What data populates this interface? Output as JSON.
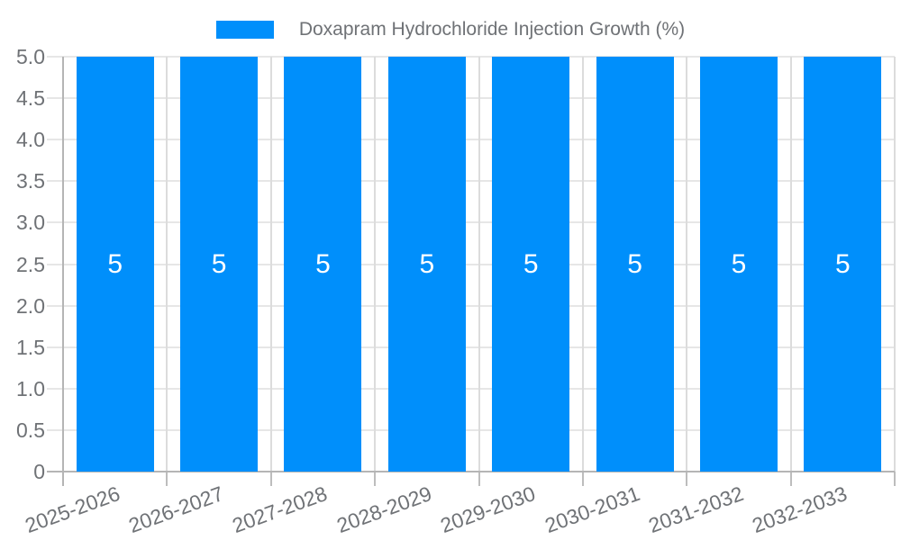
{
  "legend": {
    "label": "Doxapram Hydrochloride Injection Growth (%)",
    "marker_color": "#008FFB"
  },
  "chart_data": {
    "type": "bar",
    "title": "Doxapram Hydrochloride Injection Growth (%)",
    "categories": [
      "2025-2026",
      "2026-2027",
      "2027-2028",
      "2028-2029",
      "2029-2030",
      "2030-2031",
      "2031-2032",
      "2032-2033"
    ],
    "values": [
      5,
      5,
      5,
      5,
      5,
      5,
      5,
      5
    ],
    "data_labels": [
      "5",
      "5",
      "5",
      "5",
      "5",
      "5",
      "5",
      "5"
    ],
    "xlabel": "",
    "ylabel": "",
    "ylim": [
      0,
      5
    ],
    "ytick_step": 0.5,
    "ytick_labels": [
      "0",
      "0.5",
      "1.0",
      "1.5",
      "2.0",
      "2.5",
      "3.0",
      "3.5",
      "4.0",
      "4.5",
      "5.0"
    ],
    "grid": true,
    "legend_position": "top",
    "bar_color": "#008FFB",
    "data_label_color": "#ffffff"
  },
  "colors": {
    "background": "#ffffff",
    "bar": "#008FFB",
    "grid_horizontal": "#e6e6e6",
    "grid_vertical": "#dcdcdc",
    "axis_line": "#b5b5b5",
    "tick": "#bdbdbd",
    "axis_label_text": "#6f7276",
    "legend_text": "#6f7276",
    "data_label": "#ffffff"
  }
}
